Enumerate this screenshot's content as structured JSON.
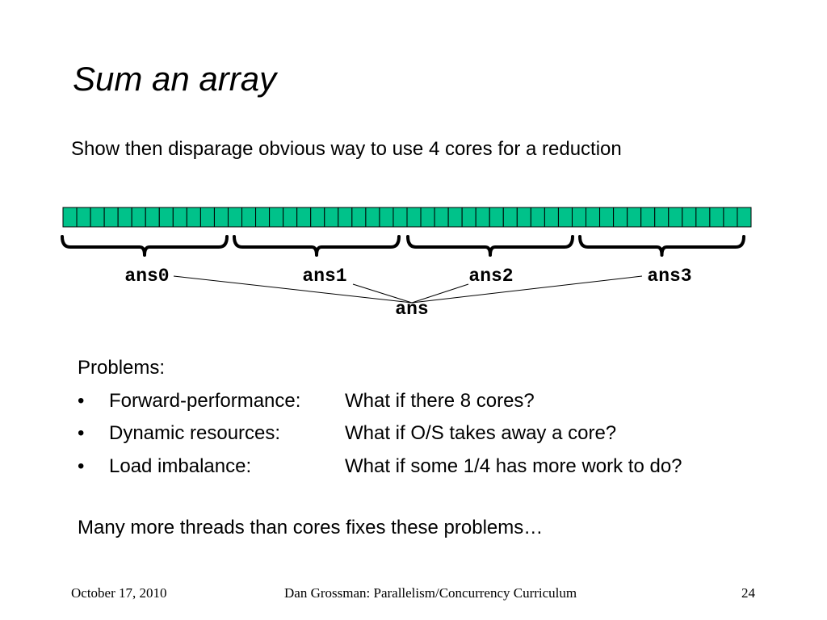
{
  "slide": {
    "title": "Sum an array",
    "subtitle": "Show then disparage obvious way to use 4 cores for a reduction"
  },
  "diagram": {
    "cell_count": 50,
    "cell_color": "#00c28a",
    "groups": [
      "ans0",
      "ans1",
      "ans2",
      "ans3"
    ],
    "result": "ans"
  },
  "problems": {
    "heading": "Problems:",
    "bullet": "•",
    "items": [
      {
        "name": "Forward-performance:",
        "desc": "What if there 8 cores?"
      },
      {
        "name": "Dynamic resources:",
        "desc": "What if O/S takes away a core?"
      },
      {
        "name": "Load imbalance:",
        "desc": "What if some 1/4 has more work to do?"
      }
    ]
  },
  "conclusion": "Many more threads than cores fixes these problems…",
  "footer": {
    "date": "October 17, 2010",
    "author": "Dan Grossman: Parallelism/Concurrency Curriculum",
    "page": "24"
  }
}
